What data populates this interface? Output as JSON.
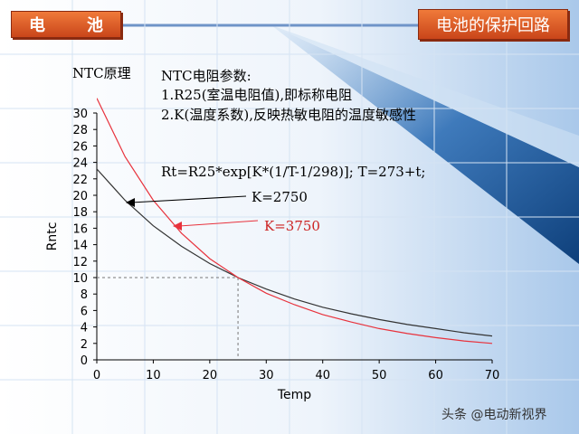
{
  "header": {
    "left_label": "电　池",
    "right_label": "电池的保护回路"
  },
  "text": {
    "ntc_principle": "NTC原理",
    "params_title": "NTC电阻参数:",
    "param_1": "1.R25(室温电阻值),即标称电阻",
    "param_2": "2.K(温度系数),反映热敏电阻的温度敏感性",
    "formula": "Rt=R25*exp[K*(1/T-1/298)];  T=273+t;"
  },
  "watermark": "头条 @电动新视界",
  "colors": {
    "accent": "#d9531e",
    "curve_k2750": "#333333",
    "curve_k3750": "#e8323c",
    "label_k3750": "#cc2222"
  },
  "chart_data": {
    "type": "line",
    "xlabel": "Temp",
    "ylabel": "Rntc",
    "xlim": [
      0,
      70
    ],
    "ylim": [
      0,
      30
    ],
    "x_ticks": [
      0,
      10,
      20,
      30,
      40,
      50,
      60,
      70
    ],
    "y_ticks": [
      0,
      2,
      4,
      6,
      8,
      10,
      12,
      14,
      16,
      18,
      20,
      22,
      24,
      26,
      28,
      30
    ],
    "r25": 10,
    "reference_point": {
      "x": 25,
      "y": 10
    },
    "x": [
      0,
      5,
      10,
      15,
      20,
      25,
      30,
      35,
      40,
      45,
      50,
      55,
      60,
      65,
      70
    ],
    "series": [
      {
        "name": "K=2750",
        "values": [
          23.2,
          19.4,
          16.3,
          13.8,
          11.7,
          10.0,
          8.6,
          7.4,
          6.4,
          5.6,
          4.9,
          4.3,
          3.8,
          3.3,
          2.9
        ]
      },
      {
        "name": "K=3750",
        "values": [
          31.8,
          24.7,
          19.4,
          15.4,
          12.3,
          10.0,
          8.1,
          6.7,
          5.5,
          4.6,
          3.8,
          3.2,
          2.7,
          2.3,
          2.0
        ]
      }
    ]
  }
}
